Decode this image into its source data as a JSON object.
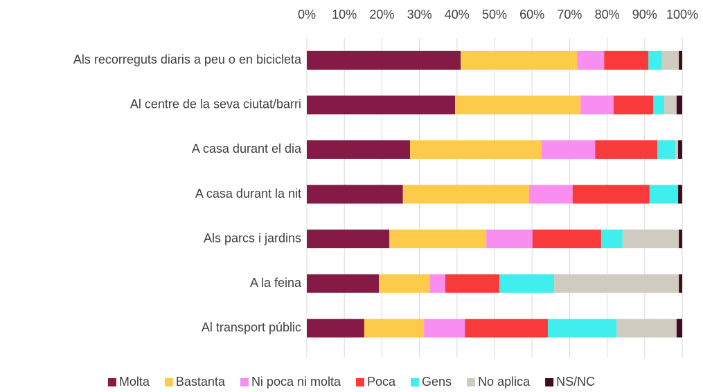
{
  "chart_data": {
    "type": "stacked_barh",
    "categories": [
      "Als recorreguts diaris a peu o en bicicleta",
      "Al centre de la seva ciutat/barri",
      "A casa durant el dia",
      "A casa durant la nit",
      "Als parcs i jardins",
      "A la feina",
      "Al transport públic"
    ],
    "series": [
      {
        "name": "Molta",
        "color": "#841a45",
        "values": [
          41.0,
          39.5,
          27.5,
          25.6,
          22.0,
          19.2,
          15.3
        ]
      },
      {
        "name": "Bastanta",
        "color": "#fdcb4a",
        "values": [
          31.0,
          33.4,
          35.0,
          33.6,
          25.8,
          13.5,
          15.9
        ]
      },
      {
        "name": "Ni poca ni molta",
        "color": "#f78ef0",
        "values": [
          7.2,
          8.8,
          14.3,
          11.6,
          12.3,
          4.2,
          10.9
        ]
      },
      {
        "name": "Poca",
        "color": "#f93a3a",
        "values": [
          11.8,
          10.6,
          16.6,
          20.5,
          18.3,
          14.4,
          22.1
        ]
      },
      {
        "name": "Gens",
        "color": "#41eeee",
        "values": [
          3.6,
          2.9,
          4.8,
          7.6,
          5.7,
          14.6,
          18.3
        ]
      },
      {
        "name": "No aplica",
        "color": "#cfcbc0",
        "values": [
          4.5,
          3.3,
          0.7,
          0,
          15.0,
          33.2,
          16.0
        ]
      },
      {
        "name": "NS/NC",
        "color": "#3d0d1f",
        "values": [
          0.9,
          1.5,
          1.1,
          1.1,
          0.9,
          0.9,
          1.5
        ]
      }
    ],
    "xlim": [
      0,
      100
    ],
    "xticks": [
      {
        "value": 0,
        "label": "0%"
      },
      {
        "value": 10,
        "label": "10%"
      },
      {
        "value": 20,
        "label": "20%"
      },
      {
        "value": 30,
        "label": "30%"
      },
      {
        "value": 40,
        "label": "40%"
      },
      {
        "value": 50,
        "label": "50%"
      },
      {
        "value": 60,
        "label": "60%"
      },
      {
        "value": 70,
        "label": "70%"
      },
      {
        "value": 80,
        "label": "80%"
      },
      {
        "value": 90,
        "label": "90%"
      },
      {
        "value": 100,
        "label": "100%"
      }
    ],
    "grid": true,
    "legend": "bottom"
  }
}
